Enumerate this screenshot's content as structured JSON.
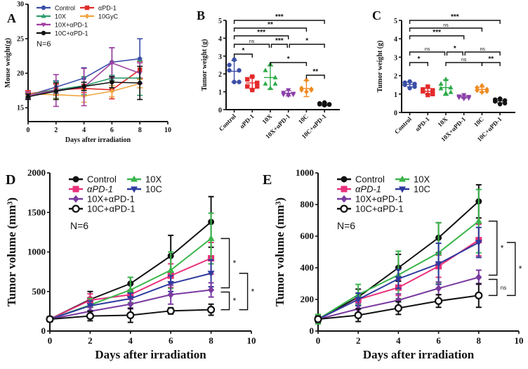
{
  "chart_data": [
    {
      "id": "A",
      "type": "line",
      "panel_label": "A",
      "xlabel": "Days after irradiation",
      "ylabel": "Mouse weight(g)",
      "xlim": [
        0,
        10
      ],
      "ylim": [
        13,
        30
      ],
      "xticks": [
        0,
        2,
        4,
        6,
        8,
        10
      ],
      "yticks": [
        15,
        20,
        25,
        30
      ],
      "annotation": "N=6",
      "legend_position": "top-left",
      "x": [
        0,
        2,
        4,
        6,
        8
      ],
      "series": [
        {
          "name": "Control",
          "color": "#3b4fa8",
          "marker": "circle",
          "values": [
            16.8,
            18.0,
            19.3,
            21.6,
            22.1
          ],
          "err": [
            0.4,
            0.9,
            1.5,
            2.1,
            2.9
          ]
        },
        {
          "name": "αPD-1",
          "color": "#e32b2b",
          "marker": "square",
          "values": [
            17.0,
            17.6,
            17.8,
            17.6,
            20.5
          ],
          "err": [
            0.5,
            0.8,
            0.6,
            1.3,
            1.2
          ]
        },
        {
          "name": "10X",
          "color": "#2e9e6e",
          "marker": "triangle-up",
          "values": [
            16.9,
            17.6,
            18.2,
            19.3,
            19.3
          ],
          "err": [
            0.4,
            1.2,
            1.3,
            0.4,
            2.5
          ]
        },
        {
          "name": "10GyC",
          "color": "#f0a640",
          "marker": "diamond",
          "values": [
            17.0,
            16.9,
            16.7,
            17.4,
            18.5
          ],
          "err": [
            0.3,
            0.6,
            0.9,
            0.8,
            0.6
          ]
        },
        {
          "name": "10X+αPD-1",
          "color": "#a040a0",
          "marker": "triangle-down",
          "values": [
            16.8,
            17.5,
            18.0,
            21.5,
            20.0
          ],
          "err": [
            0.5,
            2.3,
            2.7,
            2.2,
            1.5
          ]
        },
        {
          "name": "10C+αPD-1",
          "color": "#111111",
          "marker": "circle",
          "values": [
            16.6,
            17.4,
            18.1,
            18.7,
            18.6
          ],
          "err": [
            0.4,
            1.2,
            0.6,
            0.8,
            2.4
          ]
        }
      ]
    },
    {
      "id": "B",
      "type": "scatter",
      "panel_label": "B",
      "ylabel": "Tumor weight (g)",
      "ylim": [
        0,
        5
      ],
      "yticks": [
        0,
        1,
        2,
        3,
        4,
        5
      ],
      "categories": [
        "Control",
        "αPD-1",
        "10X",
        "10X+αPD-1",
        "10C",
        "10C+αPD-1"
      ],
      "colors": [
        "#3b4fa8",
        "#e32b2b",
        "#2eab4a",
        "#8a3fa8",
        "#f08a20",
        "#111111"
      ],
      "markers": [
        "circle",
        "square",
        "triangle-up",
        "triangle-down",
        "diamond",
        "circle"
      ],
      "points": [
        [
          2.8,
          2.5,
          2.2,
          2.2,
          1.55,
          1.55
        ],
        [
          1.85,
          1.7,
          1.5,
          1.3,
          1.3,
          1.1
        ],
        [
          2.55,
          2.2,
          1.8,
          1.45,
          1.45,
          1.2
        ],
        [
          1.1,
          0.95,
          0.9,
          0.85,
          0.85,
          0.8
        ],
        [
          1.65,
          1.2,
          1.15,
          1.1,
          1.1,
          1.0
        ],
        [
          0.4,
          0.35,
          0.3,
          0.3,
          0.28,
          0.25
        ]
      ],
      "mean": [
        2.15,
        1.5,
        1.8,
        0.92,
        1.18,
        0.3
      ],
      "sd": [
        0.6,
        0.35,
        0.65,
        0.15,
        0.45,
        0.08
      ],
      "brackets": [
        {
          "from": 0,
          "to": 5,
          "label": "***"
        },
        {
          "from": 0,
          "to": 4,
          "label": "**"
        },
        {
          "from": 0,
          "to": 3,
          "label": "***"
        },
        {
          "from": 0,
          "to": 2,
          "label": "ns"
        },
        {
          "from": 2,
          "to": 3,
          "label": "***"
        },
        {
          "from": 3,
          "to": 5,
          "label": "*"
        },
        {
          "from": 0,
          "to": 1,
          "label": "*"
        },
        {
          "from": 2,
          "to": 4,
          "label": "*"
        },
        {
          "from": 4,
          "to": 5,
          "label": "**"
        }
      ]
    },
    {
      "id": "C",
      "type": "scatter",
      "panel_label": "C",
      "ylabel": "Tumor weight (g)",
      "ylim": [
        0,
        5
      ],
      "yticks": [
        0,
        1,
        2,
        3,
        4,
        5
      ],
      "categories": [
        "Control",
        "αPD-1",
        "10X",
        "10X+αPD-1",
        "10C",
        "10C+αPD-1"
      ],
      "colors": [
        "#3b4fa8",
        "#e32b2b",
        "#2eab4a",
        "#8a3fa8",
        "#f08a20",
        "#111111"
      ],
      "markers": [
        "circle",
        "square",
        "triangle-up",
        "triangle-down",
        "diamond",
        "circle"
      ],
      "points": [
        [
          1.68,
          1.62,
          1.55,
          1.5,
          1.4,
          1.32
        ],
        [
          1.4,
          1.25,
          1.2,
          1.15,
          1.0,
          0.95
        ],
        [
          1.8,
          1.55,
          1.35,
          1.3,
          1.1,
          1.05
        ],
        [
          0.95,
          0.88,
          0.85,
          0.82,
          0.78,
          0.75
        ],
        [
          1.45,
          1.35,
          1.25,
          1.2,
          1.15,
          1.1
        ],
        [
          0.75,
          0.7,
          0.65,
          0.6,
          0.5,
          0.45
        ]
      ],
      "mean": [
        1.52,
        1.15,
        1.35,
        0.84,
        1.25,
        0.63
      ],
      "sd": [
        0.13,
        0.17,
        0.42,
        0.07,
        0.13,
        0.11
      ],
      "brackets": [
        {
          "from": 0,
          "to": 5,
          "label": "***"
        },
        {
          "from": 0,
          "to": 4,
          "label": "ns"
        },
        {
          "from": 0,
          "to": 3,
          "label": "***"
        },
        {
          "from": 0,
          "to": 2,
          "label": "ns"
        },
        {
          "from": 2,
          "to": 3,
          "label": "*"
        },
        {
          "from": 3,
          "to": 5,
          "label": "ns"
        },
        {
          "from": 0,
          "to": 1,
          "label": "*"
        },
        {
          "from": 2,
          "to": 4,
          "label": "ns"
        },
        {
          "from": 4,
          "to": 5,
          "label": "**"
        }
      ]
    },
    {
      "id": "D",
      "type": "line",
      "panel_label": "D",
      "xlabel": "Days after irradiation",
      "ylabel": "Tumor volume (mm³)",
      "xlim": [
        0,
        10
      ],
      "ylim": [
        0,
        2000
      ],
      "xticks": [
        0,
        2,
        4,
        6,
        8,
        10
      ],
      "yticks": [
        0,
        500,
        1000,
        1500,
        2000
      ],
      "annotation": "N=6",
      "legend_position": "top-left",
      "x": [
        0,
        2,
        4,
        6,
        8
      ],
      "series": [
        {
          "name": "Control",
          "color": "#111111",
          "marker": "circle",
          "values": [
            150,
            400,
            600,
            950,
            1380
          ],
          "err": [
            30,
            100,
            80,
            260,
            320
          ]
        },
        {
          "name": "αPD-1",
          "color": "#e8307a",
          "marker": "square",
          "values": [
            150,
            390,
            460,
            700,
            920
          ],
          "err": [
            30,
            80,
            60,
            150,
            200
          ]
        },
        {
          "name": "10X",
          "color": "#3ab54a",
          "marker": "triangle-up",
          "values": [
            150,
            330,
            520,
            770,
            1170
          ],
          "err": [
            30,
            80,
            160,
            230,
            320
          ]
        },
        {
          "name": "10C",
          "color": "#2e3a9e",
          "marker": "triangle-down",
          "values": [
            150,
            320,
            410,
            600,
            730
          ],
          "err": [
            30,
            60,
            70,
            100,
            170
          ]
        },
        {
          "name": "10X+αPD-1",
          "color": "#7a3aa0",
          "marker": "diamond",
          "values": [
            150,
            250,
            340,
            460,
            520
          ],
          "err": [
            30,
            50,
            60,
            120,
            90
          ]
        },
        {
          "name": "10C+αPD-1",
          "color": "#111111",
          "marker": "open-circle",
          "values": [
            150,
            190,
            200,
            255,
            270
          ],
          "err": [
            30,
            60,
            90,
            40,
            70
          ]
        }
      ],
      "brackets": [
        {
          "from": "10X",
          "to": "10X+αPD-1",
          "label": "*"
        },
        {
          "from": "10C",
          "to": "10C+αPD-1",
          "label": "*"
        },
        {
          "from": "10X+αPD-1",
          "to": "10C+αPD-1",
          "label": "*"
        }
      ]
    },
    {
      "id": "E",
      "type": "line",
      "panel_label": "E",
      "xlabel": "Days after irradiation",
      "ylabel": "Tumor volume (mm³)",
      "xlim": [
        0,
        10
      ],
      "ylim": [
        0,
        1000
      ],
      "xticks": [
        0,
        2,
        4,
        6,
        8,
        10
      ],
      "yticks": [
        0,
        200,
        400,
        600,
        800,
        1000
      ],
      "annotation": "N=6",
      "legend_position": "top-left",
      "x": [
        0,
        2,
        4,
        6,
        8
      ],
      "series": [
        {
          "name": "Control",
          "color": "#111111",
          "marker": "circle",
          "values": [
            75,
            215,
            400,
            590,
            820
          ],
          "err": [
            20,
            50,
            85,
            95,
            105
          ]
        },
        {
          "name": "αPD-1",
          "color": "#e8307a",
          "marker": "square",
          "values": [
            75,
            200,
            275,
            410,
            575
          ],
          "err": [
            20,
            40,
            50,
            70,
            100
          ]
        },
        {
          "name": "10X",
          "color": "#3ab54a",
          "marker": "triangle-up",
          "values": [
            75,
            230,
            355,
            495,
            695
          ],
          "err": [
            30,
            65,
            150,
            190,
            200
          ]
        },
        {
          "name": "10C",
          "color": "#2e3a9e",
          "marker": "triangle-down",
          "values": [
            75,
            200,
            330,
            425,
            560
          ],
          "err": [
            20,
            40,
            60,
            130,
            95
          ]
        },
        {
          "name": "10X+αPD-1",
          "color": "#7a3aa0",
          "marker": "diamond",
          "values": [
            75,
            140,
            195,
            270,
            340
          ],
          "err": [
            20,
            35,
            40,
            40,
            45
          ]
        },
        {
          "name": "10C+αPD-1",
          "color": "#111111",
          "marker": "open-circle",
          "values": [
            75,
            100,
            145,
            190,
            225
          ],
          "err": [
            20,
            40,
            40,
            40,
            75
          ]
        }
      ],
      "brackets": [
        {
          "from": "10X",
          "to": "10X+αPD-1",
          "label": "*"
        },
        {
          "from": "10C",
          "to": "10C+αPD-1",
          "label": "*"
        },
        {
          "from": "10X+αPD-1",
          "to": "10C+αPD-1",
          "label": "ns"
        }
      ]
    }
  ]
}
